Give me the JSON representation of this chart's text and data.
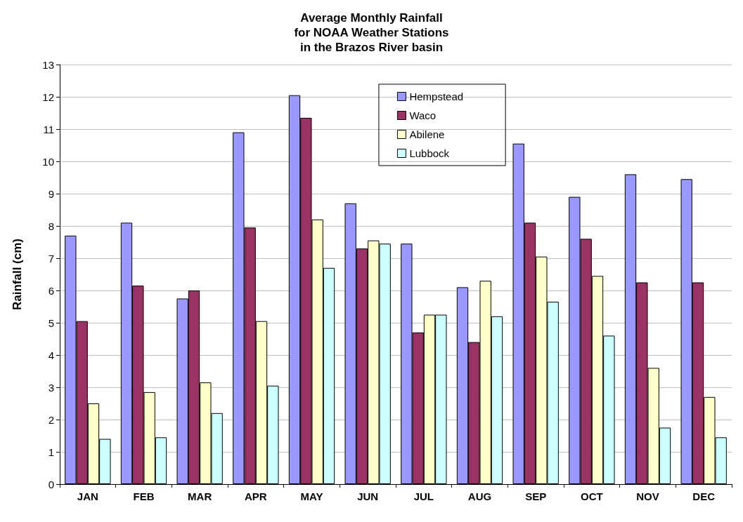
{
  "chart_data": {
    "type": "bar",
    "title": "Average Monthly Rainfall\nfor NOAA Weather Stations\nin the Brazos River basin",
    "ylabel": "Rainfall (cm)",
    "categories": [
      "JAN",
      "FEB",
      "MAR",
      "APR",
      "MAY",
      "JUN",
      "JUL",
      "AUG",
      "SEP",
      "OCT",
      "NOV",
      "DEC"
    ],
    "series": [
      {
        "name": "Hempstead",
        "color": "#9999ff",
        "values": [
          7.7,
          8.1,
          5.75,
          10.9,
          12.05,
          8.7,
          7.45,
          6.1,
          10.55,
          8.9,
          9.6,
          9.45
        ]
      },
      {
        "name": "Waco",
        "color": "#993366",
        "values": [
          5.05,
          6.15,
          6.0,
          7.95,
          11.35,
          7.3,
          4.7,
          4.4,
          8.1,
          7.6,
          6.25,
          6.25
        ]
      },
      {
        "name": "Abilene",
        "color": "#ffffcc",
        "values": [
          2.5,
          2.85,
          3.15,
          5.05,
          8.2,
          7.55,
          5.25,
          6.3,
          7.05,
          6.45,
          3.6,
          2.7
        ]
      },
      {
        "name": "Lubbock",
        "color": "#ccffff",
        "values": [
          1.4,
          1.45,
          2.2,
          3.05,
          6.7,
          7.45,
          5.25,
          5.2,
          5.65,
          4.6,
          1.75,
          1.45
        ]
      }
    ],
    "ylim": [
      0,
      13
    ],
    "yticks": [
      0,
      1,
      2,
      3,
      4,
      5,
      6,
      7,
      8,
      9,
      10,
      11,
      12,
      13
    ],
    "grid": "y",
    "legend": "top"
  }
}
